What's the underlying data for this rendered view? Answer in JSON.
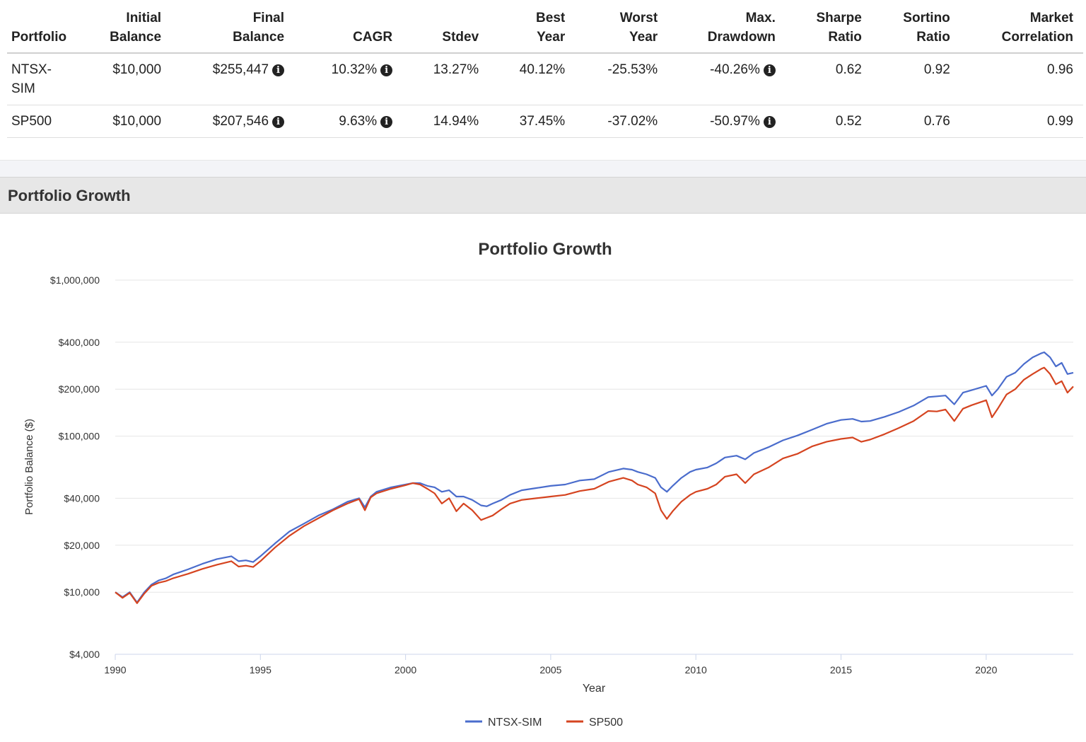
{
  "table": {
    "headers": [
      "Portfolio",
      "Initial\nBalance",
      "Final\nBalance",
      "CAGR",
      "Stdev",
      "Best\nYear",
      "Worst\nYear",
      "Max.\nDrawdown",
      "Sharpe\nRatio",
      "Sortino\nRatio",
      "Market\nCorrelation"
    ],
    "info_icon": "info-circle-icon",
    "rows": [
      {
        "portfolio": "NTSX-SIM",
        "initial": "$10,000",
        "final": "$255,447",
        "cagr": "10.32%",
        "stdev": "13.27%",
        "best": "40.12%",
        "worst": "-25.53%",
        "drawdown": "-40.26%",
        "sharpe": "0.62",
        "sortino": "0.92",
        "correlation": "0.96"
      },
      {
        "portfolio": "SP500",
        "initial": "$10,000",
        "final": "$207,546",
        "cagr": "9.63%",
        "stdev": "14.94%",
        "best": "37.45%",
        "worst": "-37.02%",
        "drawdown": "-50.97%",
        "sharpe": "0.52",
        "sortino": "0.76",
        "correlation": "0.99"
      }
    ]
  },
  "section": {
    "title": "Portfolio Growth"
  },
  "chart_data": {
    "type": "line",
    "title": "Portfolio Growth",
    "xlabel": "Year",
    "ylabel": "Portfolio Balance ($)",
    "y_scale": "log",
    "xlim": [
      1990,
      2023
    ],
    "ylim": [
      4000,
      1000000
    ],
    "x_ticks": [
      1990,
      1995,
      2000,
      2005,
      2010,
      2015,
      2020
    ],
    "y_ticks": [
      4000,
      10000,
      20000,
      40000,
      100000,
      200000,
      400000,
      1000000
    ],
    "y_tick_labels": [
      "$4,000",
      "$10,000",
      "$20,000",
      "$40,000",
      "$100,000",
      "$200,000",
      "$400,000",
      "$1,000,000"
    ],
    "grid": true,
    "legend_position": "bottom",
    "series": [
      {
        "name": "NTSX-SIM",
        "color": "#4a6ccc",
        "x": [
          1990.0,
          1990.25,
          1990.5,
          1990.75,
          1991.0,
          1991.25,
          1991.5,
          1991.75,
          1992.0,
          1992.5,
          1993.0,
          1993.5,
          1994.0,
          1994.25,
          1994.5,
          1994.75,
          1995.0,
          1995.5,
          1996.0,
          1996.5,
          1997.0,
          1997.5,
          1998.0,
          1998.4,
          1998.6,
          1998.8,
          1999.0,
          1999.5,
          2000.0,
          2000.25,
          2000.5,
          2000.75,
          2001.0,
          2001.25,
          2001.5,
          2001.75,
          2002.0,
          2002.3,
          2002.6,
          2002.8,
          2003.0,
          2003.3,
          2003.6,
          2004.0,
          2004.5,
          2005.0,
          2005.5,
          2006.0,
          2006.5,
          2007.0,
          2007.5,
          2007.8,
          2008.0,
          2008.3,
          2008.6,
          2008.8,
          2009.0,
          2009.2,
          2009.5,
          2009.8,
          2010.0,
          2010.4,
          2010.7,
          2011.0,
          2011.4,
          2011.7,
          2012.0,
          2012.5,
          2013.0,
          2013.5,
          2014.0,
          2014.5,
          2015.0,
          2015.4,
          2015.7,
          2016.0,
          2016.5,
          2017.0,
          2017.5,
          2018.0,
          2018.3,
          2018.6,
          2018.9,
          2019.2,
          2019.5,
          2020.0,
          2020.2,
          2020.4,
          2020.7,
          2021.0,
          2021.3,
          2021.6,
          2021.9,
          2022.0,
          2022.2,
          2022.4,
          2022.6,
          2022.8,
          2023.0
        ],
        "y": [
          10000,
          9300,
          10000,
          8600,
          10000,
          11200,
          11900,
          12300,
          13000,
          14000,
          15200,
          16300,
          17000,
          15800,
          16000,
          15600,
          17000,
          20500,
          24500,
          27500,
          31000,
          34000,
          38000,
          40000,
          35000,
          41000,
          44000,
          47000,
          49000,
          50000,
          50000,
          48000,
          47000,
          44000,
          45000,
          41000,
          41000,
          39000,
          36000,
          35500,
          37000,
          39000,
          42000,
          45000,
          46500,
          48000,
          49000,
          52000,
          53000,
          59000,
          62000,
          61000,
          59000,
          57000,
          54000,
          47000,
          44000,
          48000,
          54000,
          59000,
          61000,
          63000,
          67000,
          73000,
          75000,
          71000,
          78000,
          85000,
          94000,
          101000,
          110000,
          120000,
          127000,
          129000,
          124000,
          125000,
          133000,
          143000,
          157000,
          178000,
          180000,
          182000,
          160000,
          190000,
          197000,
          210000,
          182000,
          200000,
          240000,
          255000,
          290000,
          320000,
          340000,
          345000,
          320000,
          280000,
          295000,
          250000,
          255000
        ]
      },
      {
        "name": "SP500",
        "color": "#d54420",
        "x": [
          1990.0,
          1990.25,
          1990.5,
          1990.75,
          1991.0,
          1991.25,
          1991.5,
          1991.75,
          1992.0,
          1992.5,
          1993.0,
          1993.5,
          1994.0,
          1994.25,
          1994.5,
          1994.75,
          1995.0,
          1995.5,
          1996.0,
          1996.5,
          1997.0,
          1997.5,
          1998.0,
          1998.4,
          1998.6,
          1998.8,
          1999.0,
          1999.5,
          2000.0,
          2000.25,
          2000.5,
          2000.75,
          2001.0,
          2001.25,
          2001.5,
          2001.75,
          2002.0,
          2002.3,
          2002.6,
          2002.8,
          2003.0,
          2003.3,
          2003.6,
          2004.0,
          2004.5,
          2005.0,
          2005.5,
          2006.0,
          2006.5,
          2007.0,
          2007.5,
          2007.8,
          2008.0,
          2008.3,
          2008.6,
          2008.8,
          2009.0,
          2009.2,
          2009.5,
          2009.8,
          2010.0,
          2010.4,
          2010.7,
          2011.0,
          2011.4,
          2011.7,
          2012.0,
          2012.5,
          2013.0,
          2013.5,
          2014.0,
          2014.5,
          2015.0,
          2015.4,
          2015.7,
          2016.0,
          2016.5,
          2017.0,
          2017.5,
          2018.0,
          2018.3,
          2018.6,
          2018.9,
          2019.2,
          2019.5,
          2020.0,
          2020.2,
          2020.4,
          2020.7,
          2021.0,
          2021.3,
          2021.6,
          2021.9,
          2022.0,
          2022.2,
          2022.4,
          2022.6,
          2022.8,
          2023.0
        ],
        "y": [
          10000,
          9200,
          9900,
          8500,
          9800,
          11000,
          11500,
          11800,
          12300,
          13100,
          14100,
          15000,
          15800,
          14600,
          14800,
          14500,
          15800,
          19300,
          23000,
          26500,
          29800,
          33500,
          37000,
          39500,
          33500,
          40500,
          43000,
          46000,
          48500,
          50000,
          49000,
          46000,
          43000,
          37000,
          40000,
          33000,
          37000,
          33500,
          29000,
          30000,
          31000,
          34000,
          37000,
          39000,
          40000,
          41000,
          42000,
          44500,
          46000,
          51000,
          54000,
          52000,
          49000,
          47000,
          43000,
          33500,
          29500,
          33000,
          38000,
          42000,
          44000,
          46000,
          49000,
          55000,
          57000,
          50000,
          57000,
          63000,
          72000,
          77000,
          86000,
          92000,
          96000,
          98000,
          92000,
          95000,
          103000,
          113000,
          125000,
          145000,
          144000,
          148000,
          125000,
          150000,
          158000,
          170000,
          132000,
          150000,
          185000,
          200000,
          230000,
          250000,
          270000,
          275000,
          250000,
          215000,
          225000,
          190000,
          208000
        ]
      }
    ]
  }
}
